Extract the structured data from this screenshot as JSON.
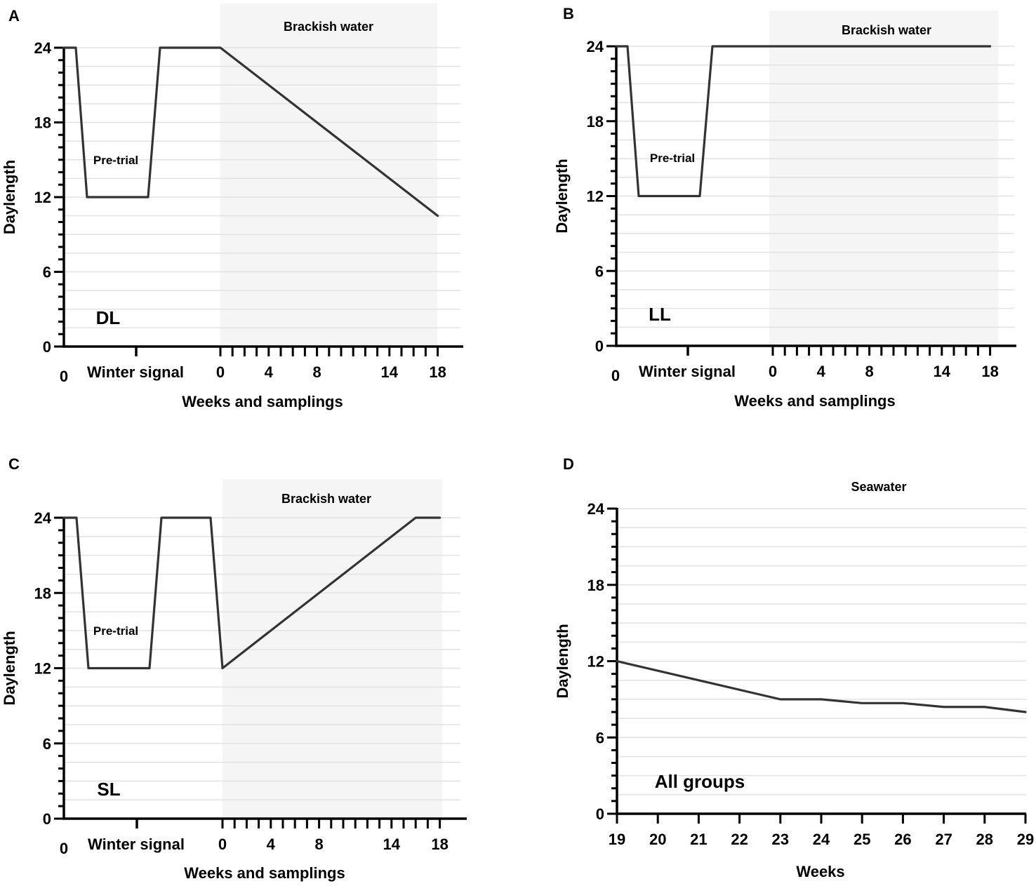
{
  "chart_data": [
    {
      "panel": "A",
      "type": "line",
      "title": "",
      "xlabel": "Weeks and samplings",
      "ylabel": "Daylength",
      "ylim": [
        0,
        24
      ],
      "yticks": [
        "0",
        "6",
        "12",
        "18",
        "24"
      ],
      "y_values": [
        0,
        6,
        12,
        18,
        24
      ],
      "band_label": "Brackish water",
      "segment_label": "Winter signal",
      "pretrial_label": "Pre-trial",
      "group_label": "DL",
      "x_tick_labels": [
        "0",
        "0",
        "4",
        "8",
        "14",
        "18"
      ],
      "x_tick_weeks": [
        null,
        0,
        4,
        8,
        14,
        18
      ],
      "series": [
        {
          "name": "DL",
          "x": [
            -13,
            -12,
            -11,
            -6,
            -5,
            0,
            18
          ],
          "y": [
            24,
            24,
            12,
            12,
            24,
            24,
            10.5
          ]
        }
      ]
    },
    {
      "panel": "B",
      "type": "line",
      "title": "",
      "xlabel": "Weeks and samplings",
      "ylabel": "Daylength",
      "ylim": [
        0,
        24
      ],
      "yticks": [
        "0",
        "6",
        "12",
        "18",
        "24"
      ],
      "y_values": [
        0,
        6,
        12,
        18,
        24
      ],
      "band_label": "Brackish water",
      "segment_label": "Winter signal",
      "pretrial_label": "Pre-trial",
      "group_label": "LL",
      "x_tick_labels": [
        "0",
        "0",
        "4",
        "8",
        "14",
        "18"
      ],
      "x_tick_weeks": [
        null,
        0,
        4,
        8,
        14,
        18
      ],
      "series": [
        {
          "name": "LL",
          "x": [
            -13,
            -12,
            -11,
            -6,
            -5,
            0,
            18
          ],
          "y": [
            24,
            24,
            12,
            12,
            24,
            24,
            24
          ]
        }
      ]
    },
    {
      "panel": "C",
      "type": "line",
      "title": "",
      "xlabel": "Weeks and samplings",
      "ylabel": "Daylength",
      "ylim": [
        0,
        24
      ],
      "yticks": [
        "0",
        "6",
        "12",
        "18",
        "24"
      ],
      "y_values": [
        0,
        6,
        12,
        18,
        24
      ],
      "band_label": "Brackish water",
      "segment_label": "Winter signal",
      "pretrial_label": "Pre-trial",
      "group_label": "SL",
      "x_tick_labels": [
        "0",
        "0",
        "4",
        "8",
        "14",
        "18"
      ],
      "x_tick_weeks": [
        null,
        0,
        4,
        8,
        14,
        18
      ],
      "series": [
        {
          "name": "SL",
          "x": [
            -13,
            -12,
            -11,
            -6,
            -5,
            -1,
            0,
            16,
            18
          ],
          "y": [
            24,
            24,
            12,
            12,
            24,
            24,
            12,
            24,
            24
          ]
        }
      ]
    },
    {
      "panel": "D",
      "type": "line",
      "title": "Seawater",
      "xlabel": "Weeks",
      "ylabel": "Daylength",
      "ylim": [
        0,
        24
      ],
      "xlim": [
        19,
        29
      ],
      "yticks": [
        "0",
        "6",
        "12",
        "18",
        "24"
      ],
      "y_values": [
        0,
        6,
        12,
        18,
        24
      ],
      "group_label": "All groups",
      "x_tick_labels": [
        "19",
        "20",
        "21",
        "22",
        "23",
        "24",
        "25",
        "26",
        "27",
        "28",
        "29"
      ],
      "x_tick_weeks": [
        19,
        20,
        21,
        22,
        23,
        24,
        25,
        26,
        27,
        28,
        29
      ],
      "series": [
        {
          "name": "All groups",
          "x": [
            19,
            23,
            24,
            25,
            26,
            27,
            28,
            29
          ],
          "y": [
            12,
            9,
            9,
            8.7,
            8.7,
            8.4,
            8.4,
            8
          ]
        }
      ]
    }
  ],
  "colors": {
    "line": "#333333",
    "axis": "#000000",
    "grid": "#e2e2e2",
    "band": "#f5f5f5"
  }
}
